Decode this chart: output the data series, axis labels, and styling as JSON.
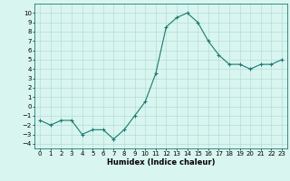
{
  "x": [
    0,
    1,
    2,
    3,
    4,
    5,
    6,
    7,
    8,
    9,
    10,
    11,
    12,
    13,
    14,
    15,
    16,
    17,
    18,
    19,
    20,
    21,
    22,
    23
  ],
  "y": [
    -1.5,
    -2.0,
    -1.5,
    -1.5,
    -3.0,
    -2.5,
    -2.5,
    -3.5,
    -2.5,
    -1.0,
    0.5,
    3.5,
    8.5,
    9.5,
    10.0,
    9.0,
    7.0,
    5.5,
    4.5,
    4.5,
    4.0,
    4.5,
    4.5,
    5.0
  ],
  "color": "#1a7a6e",
  "bg_color": "#d8f5f0",
  "grid_color": "#afd8d0",
  "xlabel": "Humidex (Indice chaleur)",
  "ylim": [
    -4.5,
    11.0
  ],
  "xlim": [
    -0.5,
    23.5
  ],
  "yticks": [
    -4,
    -3,
    -2,
    -1,
    0,
    1,
    2,
    3,
    4,
    5,
    6,
    7,
    8,
    9,
    10
  ],
  "xticks": [
    0,
    1,
    2,
    3,
    4,
    5,
    6,
    7,
    8,
    9,
    10,
    11,
    12,
    13,
    14,
    15,
    16,
    17,
    18,
    19,
    20,
    21,
    22,
    23
  ],
  "tick_font_size": 5,
  "xlabel_font_size": 6,
  "line_width": 0.8,
  "marker_size": 3,
  "marker_ew": 0.8
}
